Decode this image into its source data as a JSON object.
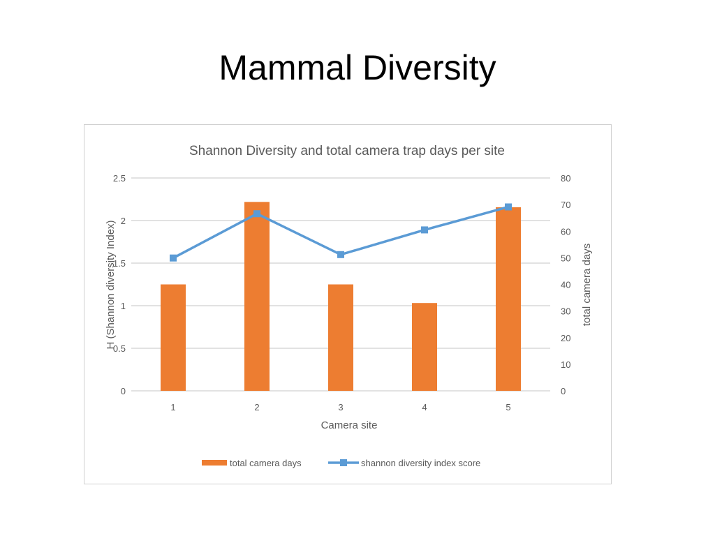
{
  "slide": {
    "title": "Mammal Diversity"
  },
  "chart_data": {
    "type": "bar+line",
    "title": "Shannon Diversity and total camera trap days per site",
    "xlabel": "Camera site",
    "ylabel_left": "H (Shannon diversity Index)",
    "ylabel_right": "total camera days",
    "categories": [
      "1",
      "2",
      "3",
      "4",
      "5"
    ],
    "ylim_left": [
      0,
      2.5
    ],
    "yticks_left": [
      "0",
      "0.5",
      "1",
      "1.5",
      "2",
      "2.5"
    ],
    "ylim_right": [
      0,
      80
    ],
    "yticks_right": [
      "0",
      "10",
      "20",
      "30",
      "40",
      "50",
      "60",
      "70",
      "80"
    ],
    "grid": true,
    "legend_position": "bottom",
    "series": [
      {
        "name": "total camera days",
        "type": "bar",
        "axis": "right",
        "color": "#ED7D31",
        "values": [
          40,
          71,
          40,
          33,
          69
        ]
      },
      {
        "name": "shannon diversity index score",
        "type": "line",
        "axis": "left",
        "color": "#5B9BD5",
        "values": [
          1.56,
          2.08,
          1.6,
          1.89,
          2.16
        ]
      }
    ]
  }
}
